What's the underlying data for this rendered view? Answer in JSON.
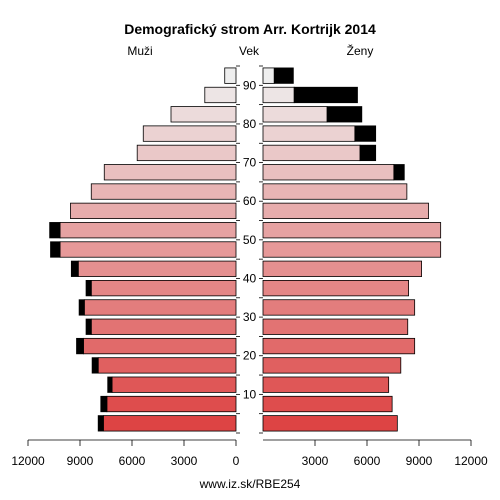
{
  "chart_data": {
    "type": "bar",
    "orientation": "horizontal",
    "title": "Demografický strom Arr. Kortrijk 2014",
    "left_label": "Muži",
    "center_label": "Vek",
    "right_label": "Ženy",
    "xlim": [
      0,
      12000
    ],
    "x_ticks": [
      12000,
      9000,
      6000,
      3000,
      0,
      3000,
      6000,
      9000,
      12000
    ],
    "age_ticks": [
      "10",
      "20",
      "30",
      "40",
      "50",
      "60",
      "70",
      "80",
      "90"
    ],
    "age_groups": [
      "0-4",
      "5-9",
      "10-14",
      "15-19",
      "20-24",
      "25-29",
      "30-34",
      "35-39",
      "40-44",
      "45-49",
      "50-54",
      "55-59",
      "60-64",
      "65-69",
      "70-74",
      "75-79",
      "80-84",
      "85-89",
      "90+"
    ],
    "series": [
      {
        "name": "Muži",
        "values": [
          7650,
          7450,
          7150,
          7950,
          8800,
          8350,
          8750,
          8350,
          9100,
          10150,
          10150,
          9550,
          8350,
          7600,
          5700,
          5350,
          3750,
          1800,
          650
        ],
        "excess": [
          300,
          350,
          250,
          350,
          400,
          300,
          300,
          300,
          400,
          550,
          600,
          0,
          0,
          0,
          0,
          0,
          0,
          0,
          0
        ]
      },
      {
        "name": "Ženy",
        "values": [
          7750,
          7450,
          7250,
          7950,
          8750,
          8350,
          8750,
          8400,
          9150,
          10250,
          10250,
          9550,
          8300,
          7550,
          5600,
          5300,
          3700,
          1800,
          650
        ],
        "excess": [
          0,
          0,
          0,
          0,
          0,
          0,
          0,
          0,
          0,
          0,
          0,
          0,
          0,
          600,
          900,
          1200,
          2000,
          3650,
          1100
        ]
      }
    ],
    "colors": {
      "excess": "#000000",
      "young": "#dd4444",
      "old": "#eeeeee"
    },
    "footer": "www.iz.sk/RBE254"
  }
}
